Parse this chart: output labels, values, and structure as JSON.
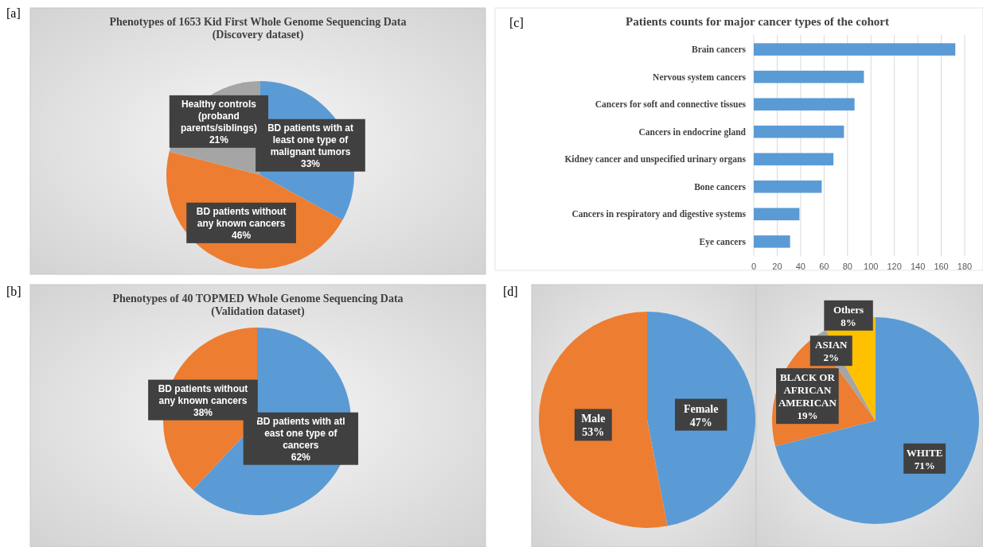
{
  "chart_data": [
    {
      "type": "pie",
      "title": "Phenotypes of 1653 Kid First Whole Genome Sequencing Data\n(Discovery dataset)",
      "annotations": [
        "[a]"
      ],
      "categories": [
        "BD patients with at least one type of malignant tumors",
        "BD patients without any known cancers",
        "Healthy controls (proband parents/siblings)"
      ],
      "values": [
        33,
        46,
        21
      ],
      "value_labels": [
        "33%",
        "46%",
        "21%"
      ],
      "colors": [
        "#5b9bd5",
        "#ed7d31",
        "#a5a5a5"
      ]
    },
    {
      "type": "pie",
      "title": "Phenotypes of 40 TOPMED Whole Genome Sequencing Data\n(Validation dataset)",
      "annotations": [
        "[b]"
      ],
      "categories": [
        "BD patients with atl east one type of cancers",
        "BD patients without any known cancers"
      ],
      "values": [
        62,
        38
      ],
      "value_labels": [
        "62%",
        "38%"
      ],
      "colors": [
        "#5b9bd5",
        "#ed7d31"
      ]
    },
    {
      "type": "bar",
      "orientation": "horizontal",
      "title": "Patients counts for major cancer types of the cohort",
      "annotations": [
        "[c]"
      ],
      "categories": [
        "Brain cancers",
        "Nervous system cancers",
        "Cancers for soft and connective tissues",
        "Cancers in endocrine gland",
        "Kidney cancer and unspecified urinary organs",
        "Bone cancers",
        "Cancers in  respiratory and digestive systems",
        "Eye cancers"
      ],
      "values": [
        172,
        94,
        86,
        77,
        68,
        58,
        39,
        31
      ],
      "color": "#5b9bd5",
      "xlim": [
        0,
        180
      ],
      "xticks": [
        0,
        20,
        40,
        60,
        80,
        100,
        120,
        140,
        160,
        180
      ],
      "grid": "x"
    },
    {
      "type": "pie",
      "annotations": [
        "[d]"
      ],
      "categories": [
        "Female",
        "Male"
      ],
      "values": [
        47,
        53
      ],
      "value_labels": [
        "47%",
        "53%"
      ],
      "colors": [
        "#5b9bd5",
        "#ed7d31"
      ]
    },
    {
      "type": "pie",
      "categories": [
        "WHITE",
        "BLACK OR AFRICAN AMERICAN",
        "ASIAN",
        "Others"
      ],
      "values": [
        71,
        19,
        2,
        8
      ],
      "value_labels": [
        "71%",
        "19%",
        "2%",
        "8%"
      ],
      "colors": [
        "#5b9bd5",
        "#ed7d31",
        "#a5a5a5",
        "#ffc000"
      ]
    }
  ]
}
